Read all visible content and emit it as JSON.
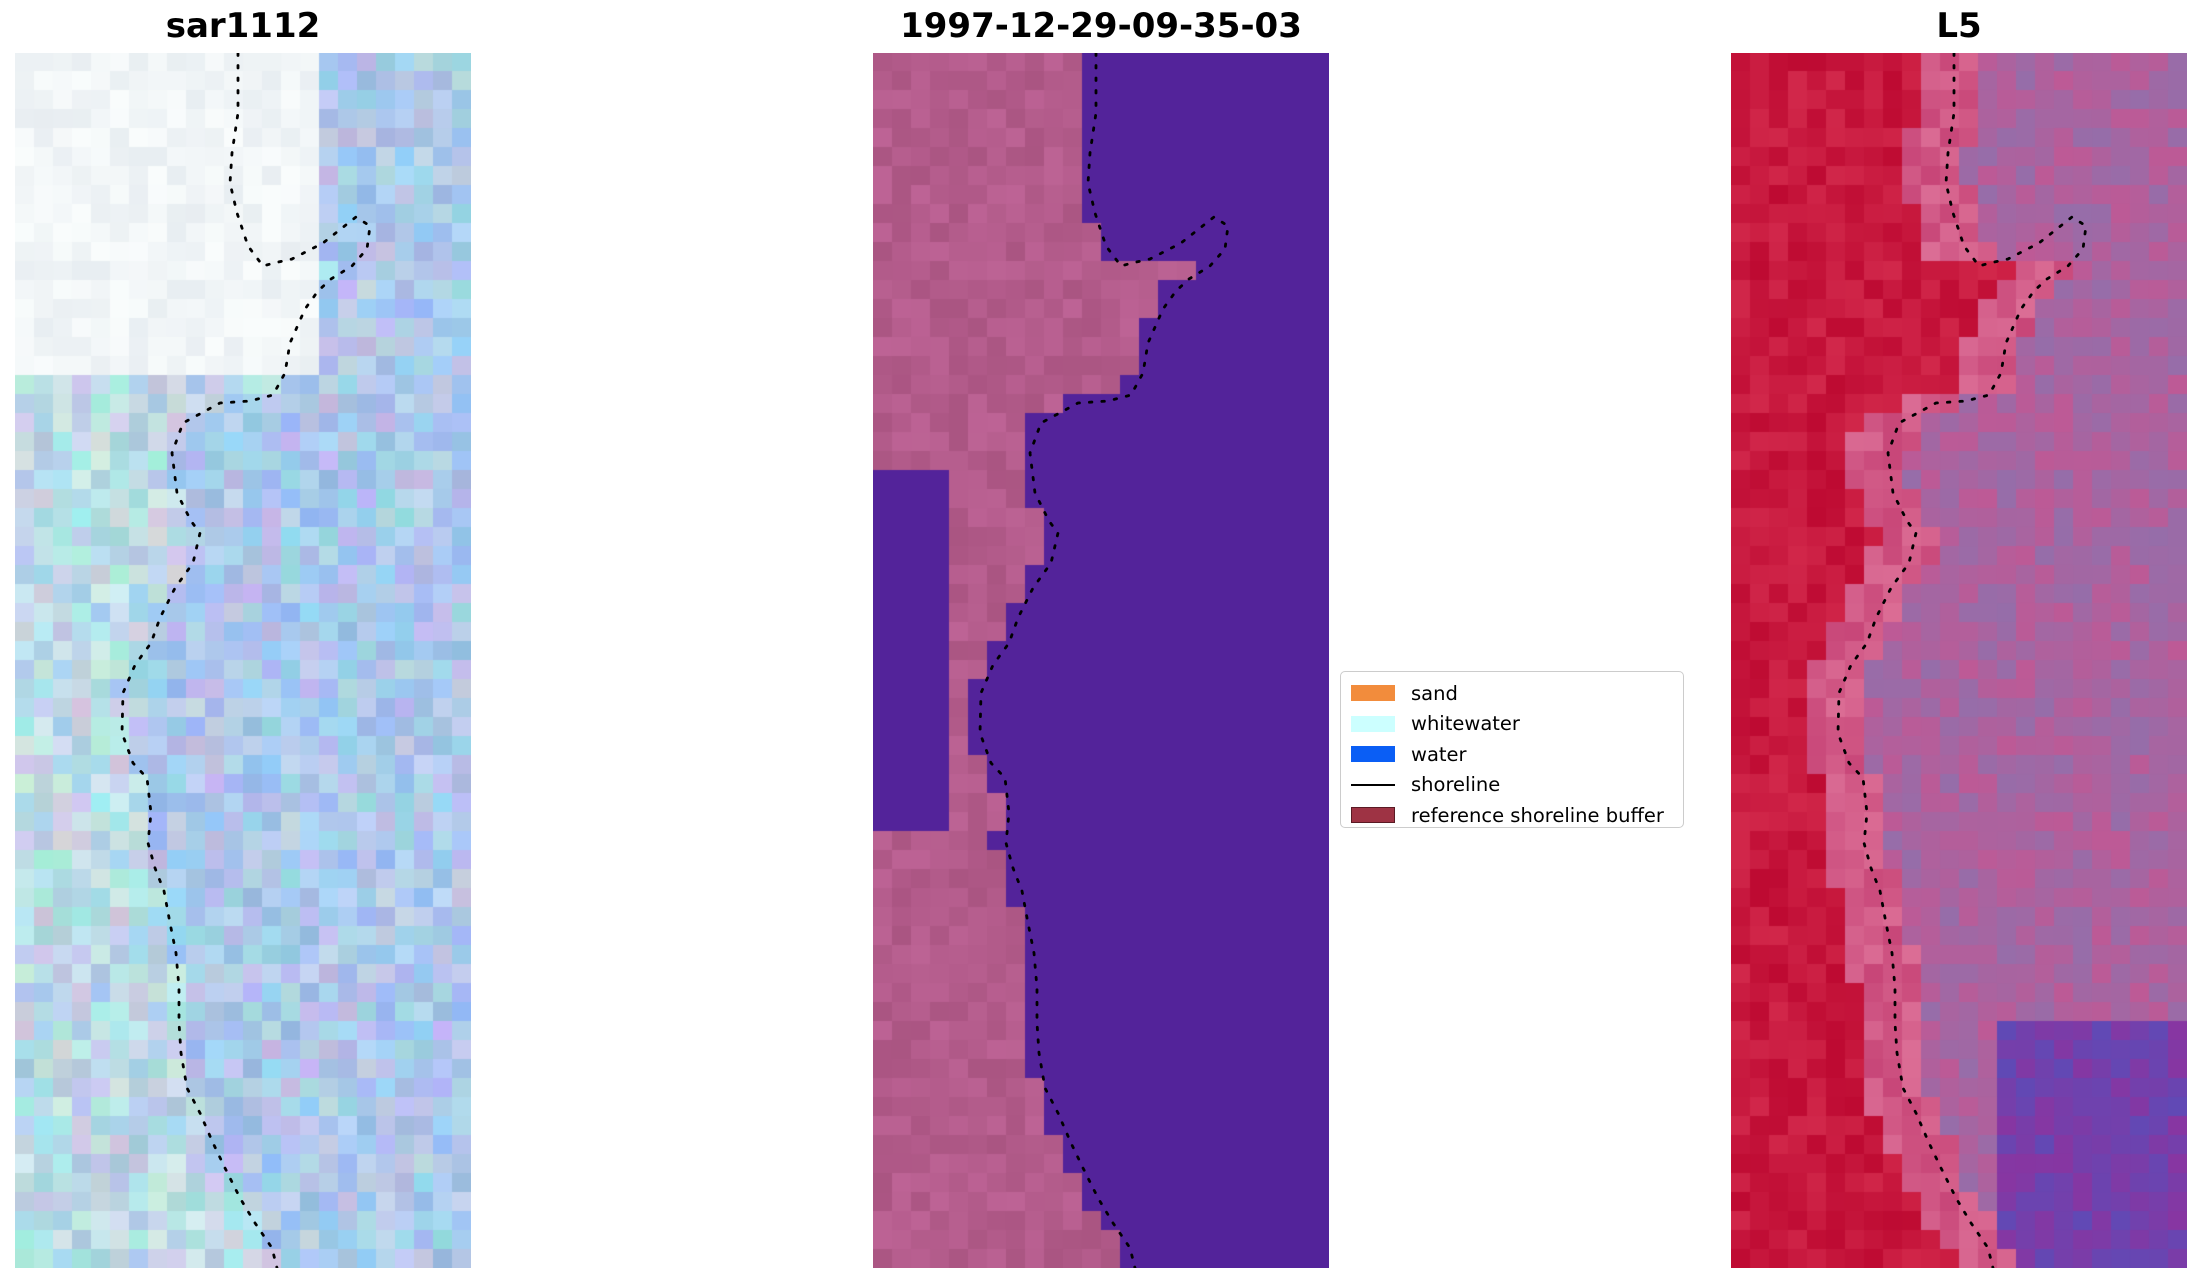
{
  "panels": [
    {
      "id": "rgb",
      "title": "sar1112"
    },
    {
      "id": "classified",
      "title": "1997-12-29-09-35-03"
    },
    {
      "id": "index",
      "title": "L5"
    }
  ],
  "legend": {
    "items": [
      {
        "label": "sand",
        "type": "patch",
        "color": "#f28c3c",
        "edge": "#f28c3c"
      },
      {
        "label": "whitewater",
        "type": "patch",
        "color": "#ccffff",
        "edge": "#ccffff"
      },
      {
        "label": "water",
        "type": "patch",
        "color": "#0a5ef5",
        "edge": "#0a5ef5"
      },
      {
        "label": "shoreline",
        "type": "line",
        "color": "#000000"
      },
      {
        "label": "reference shoreline buffer",
        "type": "patch",
        "color": "#9e3344",
        "edge": "#5a1a24"
      }
    ]
  },
  "colors": {
    "water_class": "#53239a",
    "land_class": "#b15a8c",
    "index_high": "#c3002e",
    "index_low": "#5b00a6",
    "shoreline": "#000000"
  }
}
